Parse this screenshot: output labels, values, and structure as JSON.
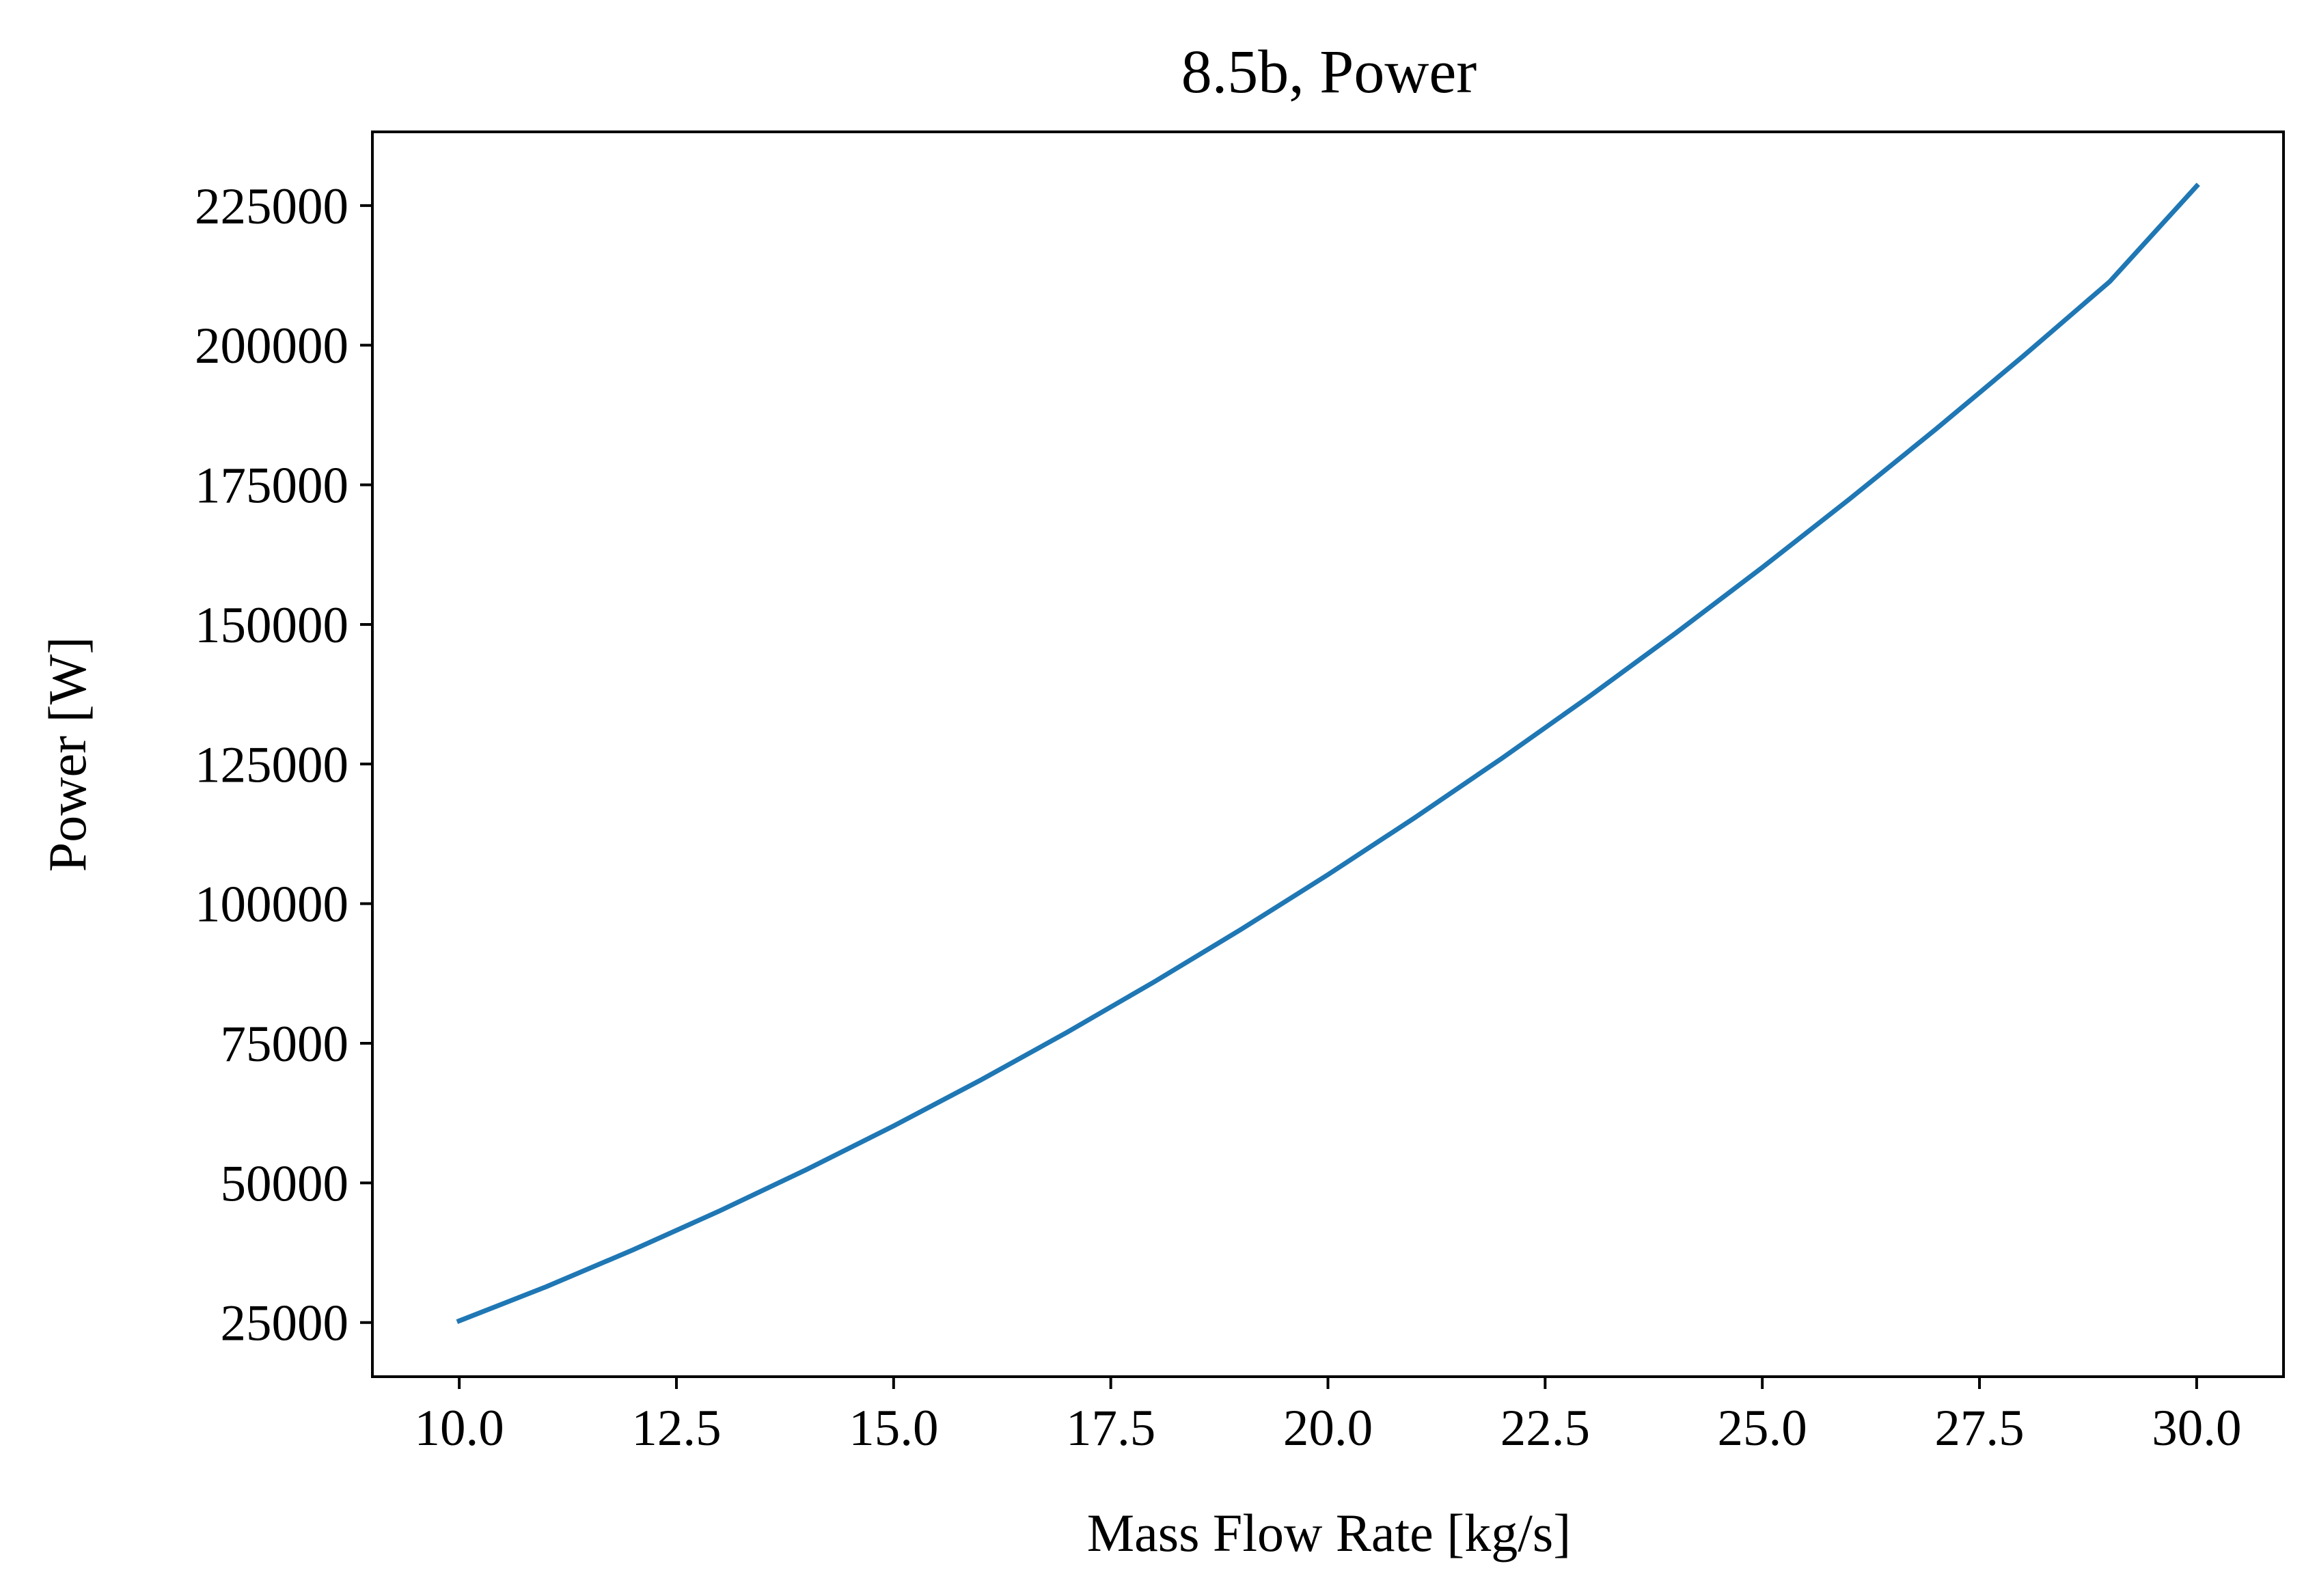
{
  "chart_data": {
    "type": "line",
    "title": "8.5b, Power",
    "xlabel": "Mass Flow Rate [kg/s]",
    "ylabel": "Power [W]",
    "xlim": [
      9.0,
      31.0
    ],
    "ylim": [
      15300,
      238200
    ],
    "xticks": [
      10.0,
      12.5,
      15.0,
      17.5,
      20.0,
      22.5,
      25.0,
      27.5,
      30.0
    ],
    "xtick_labels": [
      "10.0",
      "12.5",
      "15.0",
      "17.5",
      "20.0",
      "22.5",
      "25.0",
      "27.5",
      "30.0"
    ],
    "yticks": [
      25000,
      50000,
      75000,
      100000,
      125000,
      150000,
      175000,
      200000,
      225000
    ],
    "ytick_labels": [
      "25000",
      "50000",
      "75000",
      "100000",
      "125000",
      "150000",
      "175000",
      "200000",
      "225000"
    ],
    "grid": false,
    "series": [
      {
        "color": "#1f77b4",
        "x": [
          10,
          11,
          12,
          13,
          14,
          15,
          16,
          17,
          18,
          19,
          20,
          21,
          22,
          23,
          24,
          25,
          26,
          27,
          28,
          29,
          30
        ],
        "y": [
          25300,
          31400,
          38000,
          45000,
          52400,
          60200,
          68400,
          77000,
          86000,
          95400,
          105200,
          115400,
          126000,
          137000,
          148400,
          160200,
          172400,
          185000,
          198000,
          211400,
          228500
        ]
      }
    ]
  }
}
